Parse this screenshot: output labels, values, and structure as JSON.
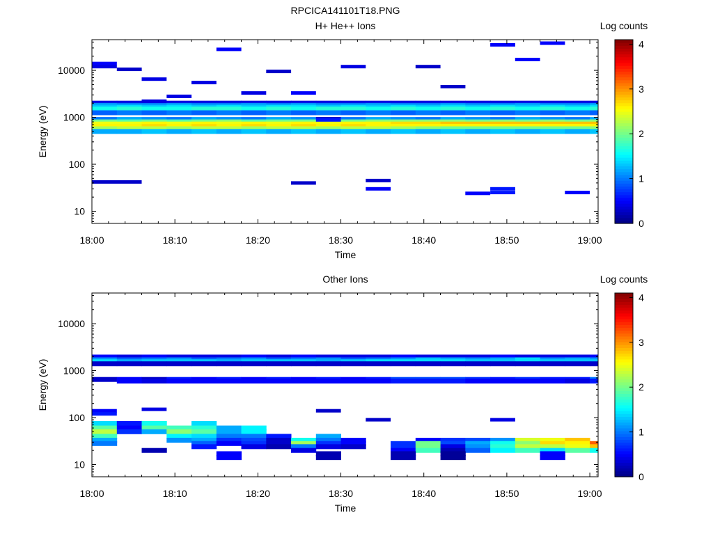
{
  "figure": {
    "title": "RPCICA141101T18.PNG"
  },
  "chart_data": [
    {
      "type": "heatmap",
      "title": "H+ He++ Ions",
      "xlabel": "Time",
      "ylabel": "Energy (eV)",
      "y_scale": "log",
      "xlim": [
        "18:00",
        "19:01"
      ],
      "ylim": [
        5.5,
        45000
      ],
      "x_ticks": [
        "18:00",
        "18:10",
        "18:20",
        "18:30",
        "18:40",
        "18:50",
        "19:00"
      ],
      "y_ticks": [
        "10",
        "100",
        "1000",
        "10000"
      ],
      "grid": false,
      "colorbar": {
        "label": "Log counts",
        "range": [
          0,
          4.1
        ],
        "ticks": [
          "0",
          "1",
          "2",
          "3",
          "4"
        ],
        "colormap": "jet"
      },
      "time_bins": [
        "18:00",
        "18:03",
        "18:06",
        "18:09",
        "18:12",
        "18:15",
        "18:18",
        "18:21",
        "18:24",
        "18:27",
        "18:30",
        "18:33",
        "18:36",
        "18:39",
        "18:42",
        "18:45",
        "18:48",
        "18:51",
        "18:54",
        "18:57",
        "19:00"
      ],
      "bands": [
        {
          "energy_eV": 2000,
          "values": [
            0.4,
            0.4,
            0.4,
            0.4,
            0.4,
            0.4,
            0.4,
            0.4,
            0.4,
            0.4,
            0.4,
            0.4,
            0.4,
            0.4,
            0.4,
            0.4,
            0.4,
            0.4,
            0.4,
            0.4,
            0.4
          ]
        },
        {
          "energy_eV": 1800,
          "values": [
            1.1,
            1.0,
            1.0,
            1.1,
            1.0,
            1.0,
            1.1,
            1.0,
            1.1,
            1.0,
            1.0,
            1.1,
            1.0,
            1.0,
            1.1,
            1.0,
            1.0,
            1.1,
            1.0,
            1.0,
            1.1
          ]
        },
        {
          "energy_eV": 1650,
          "values": [
            1.3,
            1.4,
            1.3,
            1.4,
            1.3,
            1.4,
            1.3,
            1.4,
            1.4,
            1.3,
            1.4,
            1.3,
            1.4,
            1.3,
            1.4,
            1.3,
            1.4,
            1.3,
            1.4,
            1.3,
            1.4
          ]
        },
        {
          "energy_eV": 1500,
          "values": [
            1.6,
            1.7,
            1.6,
            1.6,
            1.7,
            1.7,
            1.6,
            1.7,
            1.6,
            1.7,
            1.7,
            1.6,
            1.7,
            1.6,
            1.7,
            1.6,
            1.7,
            1.6,
            1.7,
            1.6,
            1.7
          ]
        },
        {
          "energy_eV": 1250,
          "values": [
            0.9,
            1.0,
            0.9,
            1.0,
            0.9,
            1.0,
            0.9,
            1.0,
            0.9,
            1.0,
            0.9,
            1.0,
            0.9,
            1.0,
            0.9,
            1.0,
            0.9,
            1.0,
            0.9,
            1.0,
            0.9
          ]
        },
        {
          "energy_eV": 900,
          "values": [
            1.0,
            1.2,
            1.1,
            1.0,
            1.2,
            1.1,
            1.0,
            1.2,
            1.1,
            0.3,
            1.0,
            1.2,
            1.1,
            1.0,
            1.2,
            1.1,
            1.0,
            1.2,
            1.1,
            1.0,
            1.2
          ]
        },
        {
          "energy_eV": 800,
          "values": [
            2.0,
            1.9,
            2.0,
            1.9,
            2.0,
            2.1,
            1.9,
            2.0,
            2.0,
            1.9,
            2.0,
            2.1,
            2.1,
            2.1,
            2.1,
            2.0,
            2.1,
            2.0,
            2.1,
            2.0,
            2.1
          ]
        },
        {
          "energy_eV": 720,
          "values": [
            2.5,
            2.5,
            2.6,
            2.5,
            2.6,
            2.5,
            2.6,
            2.5,
            2.6,
            2.5,
            2.6,
            2.6,
            2.7,
            2.7,
            2.8,
            2.8,
            2.8,
            2.8,
            2.8,
            2.8,
            2.8
          ]
        },
        {
          "energy_eV": 640,
          "values": [
            2.6,
            2.6,
            2.7,
            2.6,
            2.7,
            2.6,
            2.7,
            2.6,
            2.7,
            2.6,
            2.7,
            2.6,
            2.6,
            2.6,
            2.6,
            2.6,
            2.6,
            2.6,
            2.6,
            2.6,
            2.6
          ]
        },
        {
          "energy_eV": 570,
          "values": [
            2.2,
            2.3,
            2.3,
            2.2,
            2.3,
            2.3,
            2.2,
            2.3,
            2.3,
            2.2,
            2.3,
            2.3,
            2.2,
            2.1,
            2.0,
            2.0,
            2.0,
            2.0,
            2.0,
            2.0,
            2.1
          ]
        },
        {
          "energy_eV": 500,
          "values": [
            1.2,
            1.2,
            1.3,
            1.2,
            1.3,
            1.2,
            1.3,
            1.2,
            1.3,
            1.2,
            1.3,
            1.2,
            1.3,
            1.2,
            1.3,
            1.2,
            1.3,
            1.2,
            1.3,
            1.2,
            1.3
          ]
        }
      ],
      "sparse_events": [
        {
          "t0": "18:00",
          "t1": "18:03",
          "energy_eV": 14000,
          "value": 0.5
        },
        {
          "t0": "18:00",
          "t1": "18:03",
          "energy_eV": 12000,
          "value": 0.4
        },
        {
          "t0": "18:00",
          "t1": "18:06",
          "energy_eV": 42,
          "value": 0.3
        },
        {
          "t0": "18:03",
          "t1": "18:06",
          "energy_eV": 10500,
          "value": 0.3
        },
        {
          "t0": "18:06",
          "t1": "18:09",
          "energy_eV": 6500,
          "value": 0.4
        },
        {
          "t0": "18:06",
          "t1": "18:09",
          "energy_eV": 2200,
          "value": 0.4
        },
        {
          "t0": "18:09",
          "t1": "18:12",
          "energy_eV": 2800,
          "value": 0.4
        },
        {
          "t0": "18:12",
          "t1": "18:15",
          "energy_eV": 5500,
          "value": 0.4
        },
        {
          "t0": "18:15",
          "t1": "18:18",
          "energy_eV": 28000,
          "value": 0.5
        },
        {
          "t0": "18:18",
          "t1": "18:21",
          "energy_eV": 3300,
          "value": 0.4
        },
        {
          "t0": "18:21",
          "t1": "18:24",
          "energy_eV": 9500,
          "value": 0.3
        },
        {
          "t0": "18:24",
          "t1": "18:27",
          "energy_eV": 3300,
          "value": 0.5
        },
        {
          "t0": "18:24",
          "t1": "18:27",
          "energy_eV": 40,
          "value": 0.3
        },
        {
          "t0": "18:27",
          "t1": "18:30",
          "energy_eV": 880,
          "value": 0.6
        },
        {
          "t0": "18:30",
          "t1": "18:33",
          "energy_eV": 12000,
          "value": 0.4
        },
        {
          "t0": "18:33",
          "t1": "18:36",
          "energy_eV": 30,
          "value": 0.5
        },
        {
          "t0": "18:33",
          "t1": "18:36",
          "energy_eV": 45,
          "value": 0.3
        },
        {
          "t0": "18:39",
          "t1": "18:42",
          "energy_eV": 12000,
          "value": 0.3
        },
        {
          "t0": "18:42",
          "t1": "18:45",
          "energy_eV": 4500,
          "value": 0.3
        },
        {
          "t0": "18:45",
          "t1": "18:48",
          "energy_eV": 24,
          "value": 0.5
        },
        {
          "t0": "18:48",
          "t1": "18:51",
          "energy_eV": 30,
          "value": 0.6
        },
        {
          "t0": "18:48",
          "t1": "18:51",
          "energy_eV": 25,
          "value": 0.6
        },
        {
          "t0": "18:48",
          "t1": "18:51",
          "energy_eV": 35000,
          "value": 0.5
        },
        {
          "t0": "18:51",
          "t1": "18:54",
          "energy_eV": 17000,
          "value": 0.5
        },
        {
          "t0": "18:54",
          "t1": "18:57",
          "energy_eV": 38000,
          "value": 0.5
        },
        {
          "t0": "18:57",
          "t1": "19:00",
          "energy_eV": 25,
          "value": 0.5
        }
      ]
    },
    {
      "type": "heatmap",
      "title": "Other Ions",
      "xlabel": "Time",
      "ylabel": "Energy (eV)",
      "y_scale": "log",
      "xlim": [
        "18:00",
        "19:01"
      ],
      "ylim": [
        5.5,
        45000
      ],
      "x_ticks": [
        "18:00",
        "18:10",
        "18:20",
        "18:30",
        "18:40",
        "18:50",
        "19:00"
      ],
      "y_ticks": [
        "10",
        "100",
        "1000",
        "10000"
      ],
      "grid": false,
      "colorbar": {
        "label": "Log counts",
        "range": [
          0,
          4.1
        ],
        "ticks": [
          "0",
          "1",
          "2",
          "3",
          "4"
        ],
        "colormap": "jet"
      },
      "time_bins": [
        "18:00",
        "18:03",
        "18:06",
        "18:09",
        "18:12",
        "18:15",
        "18:18",
        "18:21",
        "18:24",
        "18:27",
        "18:30",
        "18:33",
        "18:36",
        "18:39",
        "18:42",
        "18:45",
        "18:48",
        "18:51",
        "18:54",
        "18:57",
        "19:00"
      ],
      "bands": [
        {
          "energy_eV": 1950,
          "values": [
            0.5,
            0.4,
            0.5,
            0.4,
            0.4,
            0.4,
            0.5,
            0.4,
            0.5,
            0.4,
            0.4,
            0.4,
            0.5,
            0.4,
            0.4,
            0.4,
            0.5,
            0.4,
            0.4,
            0.4,
            0.5
          ]
        },
        {
          "energy_eV": 1700,
          "values": [
            1.1,
            0.9,
            1.0,
            1.1,
            0.9,
            1.0,
            1.1,
            0.9,
            1.0,
            1.1,
            0.9,
            1.0,
            1.1,
            1.3,
            1.2,
            1.1,
            1.2,
            1.4,
            1.1,
            1.2,
            1.1
          ]
        },
        {
          "energy_eV": 1550,
          "values": [
            1.4,
            1.2,
            1.3,
            1.3,
            1.3,
            1.2,
            1.3,
            1.3,
            1.3,
            1.2,
            1.3,
            1.4,
            1.4,
            1.4,
            1.4,
            1.3,
            1.3,
            1.4,
            1.3,
            1.3,
            1.3
          ]
        },
        {
          "energy_eV": 1400,
          "values": [
            0.3,
            0.3,
            0.3,
            0.3,
            0.3,
            0.3,
            0.3,
            0.3,
            0.3,
            0.3,
            0.3,
            0.3,
            0.3,
            0.3,
            0.3,
            0.3,
            0.3,
            0.3,
            0.3,
            0.3,
            0.3
          ]
        },
        {
          "energy_eV": 650,
          "values": [
            0.3,
            0.5,
            0.3,
            0.6,
            0.5,
            0.6,
            0.5,
            0.6,
            0.5,
            0.6,
            0.5,
            0.6,
            0.8,
            0.8,
            0.8,
            0.7,
            0.6,
            0.7,
            0.6,
            0.6,
            1.0
          ]
        },
        {
          "energy_eV": 600,
          "values": [
            0.0,
            0.5,
            0.4,
            0.5,
            0.5,
            0.5,
            0.5,
            0.5,
            0.5,
            0.5,
            0.5,
            0.5,
            0.6,
            0.6,
            0.6,
            0.5,
            0.5,
            0.5,
            0.5,
            0.4,
            0.6
          ]
        },
        {
          "energy_eV": 75,
          "values": [
            1.4,
            0.6,
            1.6,
            0.0,
            1.4,
            0.0,
            0.0,
            0.0,
            0.0,
            0.0,
            0.0,
            0.0,
            0.0,
            0.0,
            0.0,
            0.0,
            0.0,
            0.0,
            0.0,
            0.0,
            0.0
          ]
        },
        {
          "energy_eV": 60,
          "values": [
            1.9,
            0.5,
            1.9,
            1.8,
            1.7,
            1.2,
            1.5,
            0.0,
            0.0,
            0.0,
            0.0,
            0.0,
            0.0,
            0.0,
            0.0,
            0.0,
            0.0,
            0.0,
            0.0,
            0.0,
            0.0
          ]
        },
        {
          "energy_eV": 50,
          "values": [
            2.3,
            0.7,
            1.2,
            2.1,
            1.9,
            1.2,
            1.5,
            0.0,
            0.0,
            0.0,
            0.0,
            0.0,
            0.0,
            0.0,
            0.0,
            0.0,
            0.0,
            0.0,
            0.0,
            0.0,
            0.0
          ]
        },
        {
          "energy_eV": 40,
          "values": [
            1.8,
            0.0,
            0.0,
            1.5,
            1.4,
            1.0,
            1.0,
            0.6,
            0.0,
            1.2,
            0.0,
            0.0,
            0.0,
            0.0,
            0.0,
            0.0,
            0.0,
            0.0,
            0.0,
            0.0,
            0.0
          ]
        },
        {
          "energy_eV": 33,
          "values": [
            1.2,
            0.0,
            0.0,
            1.1,
            1.2,
            0.7,
            0.8,
            0.3,
            1.6,
            1.0,
            0.5,
            0.0,
            0.0,
            0.5,
            0.7,
            0.8,
            1.1,
            2.4,
            2.5,
            2.8,
            0.0
          ]
        },
        {
          "energy_eV": 28,
          "values": [
            1.0,
            0.0,
            0.0,
            0.0,
            0.9,
            0.5,
            0.7,
            0.3,
            2.2,
            0.7,
            0.5,
            0.0,
            0.7,
            2.0,
            0.8,
            1.2,
            1.6,
            2.1,
            2.7,
            2.6,
            3.2
          ]
        },
        {
          "energy_eV": 24,
          "values": [
            0.0,
            0.0,
            0.0,
            0.0,
            0.6,
            0.0,
            0.4,
            0.2,
            1.0,
            0.4,
            0.3,
            0.0,
            0.7,
            2.0,
            0.4,
            1.1,
            1.7,
            2.3,
            2.3,
            2.5,
            2.8
          ]
        },
        {
          "energy_eV": 20,
          "values": [
            0.0,
            0.0,
            0.2,
            0.0,
            0.0,
            0.0,
            0.0,
            0.0,
            0.4,
            0.0,
            0.0,
            0.0,
            0.5,
            1.8,
            0.2,
            0.9,
            1.5,
            1.8,
            1.4,
            1.9,
            1.6
          ]
        },
        {
          "energy_eV": 17,
          "values": [
            0.0,
            0.0,
            0.0,
            0.0,
            0.0,
            0.5,
            0.0,
            0.0,
            0.0,
            0.2,
            0.0,
            0.0,
            0.2,
            0.0,
            0.1,
            0.0,
            0.0,
            0.0,
            0.5,
            0.0,
            0.0
          ]
        },
        {
          "energy_eV": 14,
          "values": [
            0.0,
            0.0,
            0.0,
            0.0,
            0.0,
            0.5,
            0.0,
            0.0,
            0.0,
            0.2,
            0.0,
            0.0,
            0.2,
            0.0,
            0.1,
            0.0,
            0.0,
            0.0,
            0.5,
            0.0,
            0.0
          ]
        }
      ],
      "sparse_events": [
        {
          "t0": "18:00",
          "t1": "18:03",
          "energy_eV": 140,
          "value": 0.5
        },
        {
          "t0": "18:00",
          "t1": "18:03",
          "energy_eV": 120,
          "value": 0.6
        },
        {
          "t0": "18:06",
          "t1": "18:09",
          "energy_eV": 150,
          "value": 0.4
        },
        {
          "t0": "18:27",
          "t1": "18:30",
          "energy_eV": 140,
          "value": 0.3
        },
        {
          "t0": "18:33",
          "t1": "18:36",
          "energy_eV": 90,
          "value": 0.3
        },
        {
          "t0": "18:48",
          "t1": "18:51",
          "energy_eV": 90,
          "value": 0.4
        }
      ]
    }
  ]
}
